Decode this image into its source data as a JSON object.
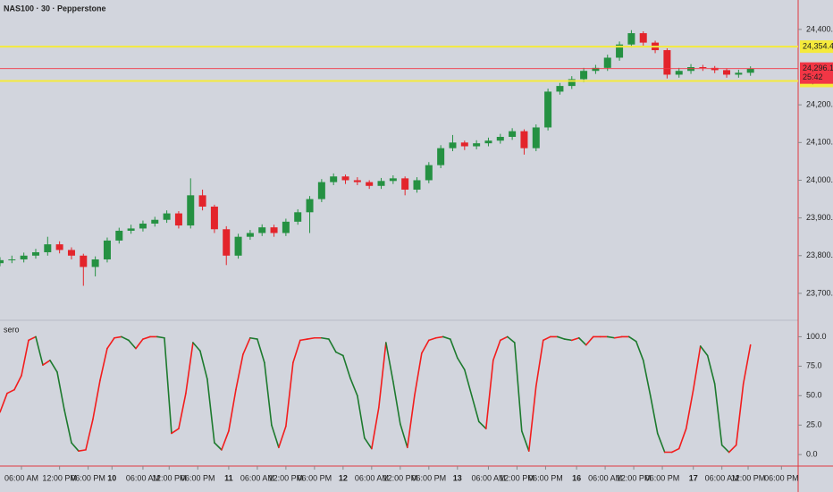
{
  "chart_data": [
    {
      "type": "candlestick",
      "title": "NAS100 · 30 · Pepperstone",
      "x": [
        0,
        5,
        10,
        15,
        20,
        25,
        30,
        35,
        40,
        45,
        50,
        55,
        60,
        65,
        70,
        75,
        80,
        85,
        90,
        95,
        100,
        105,
        110,
        115,
        120,
        125,
        130,
        135,
        140,
        145,
        150,
        155,
        160,
        165,
        170,
        175,
        180,
        185,
        190,
        195,
        200,
        205,
        210,
        215,
        220,
        225,
        230,
        235,
        240,
        245,
        250,
        255,
        260,
        265,
        270,
        275,
        280,
        285,
        290,
        295,
        300,
        305,
        310,
        315
      ],
      "open": [
        23780,
        23788,
        23790,
        23800,
        23809,
        23830,
        23815,
        23800,
        23770,
        23790,
        23840,
        23866,
        23872,
        23885,
        23895,
        23912,
        23880,
        23960,
        23930,
        23870,
        23800,
        23850,
        23860,
        23875,
        23860,
        23890,
        23915,
        23950,
        23995,
        24010,
        24000,
        23995,
        23985,
        23998,
        24005,
        23975,
        24000,
        24040,
        24085,
        24100,
        24090,
        24098,
        24105,
        24115,
        24130,
        24085,
        24140,
        24235,
        24250,
        24268,
        24290,
        24298,
        24325,
        24360,
        24390,
        24365,
        24345,
        24280,
        24290,
        24300,
        24298,
        24292,
        24280,
        24285
      ],
      "high": [
        23796,
        23800,
        23808,
        23818,
        23850,
        23838,
        23822,
        23805,
        23798,
        23848,
        23874,
        23882,
        23893,
        23903,
        23920,
        23918,
        24005,
        23975,
        23935,
        23878,
        23858,
        23868,
        23883,
        23882,
        23898,
        23923,
        23958,
        24003,
        24018,
        24015,
        24008,
        24000,
        24006,
        24013,
        24010,
        24008,
        24048,
        24093,
        24120,
        24105,
        24106,
        24113,
        24123,
        24138,
        24135,
        24148,
        24243,
        24258,
        24276,
        24298,
        24306,
        24333,
        24368,
        24398,
        24395,
        24370,
        24350,
        24298,
        24308,
        24306,
        24303,
        24297,
        24293,
        24302
      ],
      "low": [
        23772,
        23780,
        23782,
        23792,
        23800,
        23806,
        23790,
        23720,
        23745,
        23782,
        23832,
        23858,
        23864,
        23877,
        23887,
        23872,
        23872,
        23920,
        23860,
        23775,
        23792,
        23842,
        23852,
        23850,
        23852,
        23882,
        23860,
        23942,
        23987,
        23990,
        23987,
        23977,
        23977,
        23990,
        23960,
        23967,
        23992,
        24032,
        24077,
        24080,
        24082,
        24090,
        24097,
        24107,
        24068,
        24077,
        24132,
        24227,
        24242,
        24260,
        24282,
        24290,
        24317,
        24352,
        24357,
        24337,
        24270,
        24272,
        24282,
        24290,
        24284,
        24272,
        24272,
        24277
      ],
      "close": [
        23788,
        23790,
        23800,
        23809,
        23830,
        23815,
        23800,
        23770,
        23790,
        23840,
        23866,
        23872,
        23885,
        23895,
        23912,
        23880,
        23960,
        23930,
        23870,
        23800,
        23850,
        23860,
        23875,
        23860,
        23890,
        23915,
        23950,
        23995,
        24010,
        24000,
        23995,
        23985,
        23998,
        24005,
        23975,
        24000,
        24040,
        24085,
        24100,
        24090,
        24098,
        24105,
        24115,
        24130,
        24085,
        24140,
        24235,
        24250,
        24268,
        24290,
        24298,
        24325,
        24360,
        24390,
        24365,
        24345,
        24280,
        24290,
        24300,
        24298,
        24292,
        24280,
        24285,
        24296.1
      ],
      "up_color": "#259142",
      "down_color": "#e3242b",
      "xlim": [
        0,
        335
      ],
      "ylim": [
        23631,
        24478
      ],
      "yticks": [
        {
          "value": 23700,
          "label": "23,700.0"
        },
        {
          "value": 23800,
          "label": "23,800.0"
        },
        {
          "value": 23900,
          "label": "23,900.0"
        },
        {
          "value": 24000,
          "label": "24,000.0"
        },
        {
          "value": 24100,
          "label": "24,100.0"
        },
        {
          "value": 24200,
          "label": "24,200.0"
        },
        {
          "value": 24400,
          "label": "24,400.0"
        }
      ],
      "levels": [
        {
          "value": 24354.4,
          "label": "24,354.4",
          "color": "#f5ea3c"
        },
        {
          "value": 24263.3,
          "label": "24,263.3",
          "color": "#f5ea3c"
        }
      ],
      "last_price": {
        "value": 24296.1,
        "label": "24,296.1",
        "countdown": "25:42",
        "color": "#f23645"
      }
    },
    {
      "type": "line",
      "title": "sero",
      "x": [
        0,
        3,
        6,
        9,
        12,
        15,
        18,
        21,
        24,
        27,
        30,
        33,
        36,
        39,
        42,
        45,
        48,
        51,
        54,
        57,
        60,
        63,
        66,
        69,
        72,
        75,
        78,
        81,
        84,
        87,
        90,
        93,
        96,
        99,
        102,
        105,
        108,
        111,
        114,
        117,
        120,
        123,
        126,
        129,
        132,
        135,
        138,
        141,
        144,
        147,
        150,
        153,
        156,
        159,
        162,
        165,
        168,
        171,
        174,
        177,
        180,
        183,
        186,
        189,
        192,
        195,
        198,
        201,
        204,
        207,
        210,
        213,
        216,
        219,
        222,
        225,
        228,
        231,
        234,
        237,
        240,
        243,
        246,
        249,
        252,
        255,
        258,
        261,
        264,
        267,
        270,
        273,
        276,
        279,
        282,
        285,
        288,
        291,
        294,
        297,
        300,
        303,
        306,
        309,
        312,
        315
      ],
      "values": [
        36,
        52,
        55,
        67,
        97,
        100,
        76,
        80,
        70,
        38,
        10,
        3,
        4,
        30,
        63,
        90,
        99,
        100,
        97,
        90,
        98,
        100,
        100,
        99,
        18,
        22,
        52,
        95,
        88,
        64,
        10,
        4,
        20,
        55,
        85,
        99,
        98,
        78,
        25,
        6,
        24,
        78,
        97,
        98,
        99,
        99,
        98,
        87,
        84,
        65,
        50,
        14,
        5,
        40,
        95,
        62,
        26,
        6,
        50,
        86,
        97,
        99,
        100,
        98,
        82,
        72,
        50,
        28,
        22,
        80,
        97,
        100,
        95,
        20,
        3,
        58,
        97,
        100,
        100,
        98,
        97,
        99,
        93,
        100,
        100,
        100,
        99,
        100,
        100,
        96,
        80,
        50,
        18,
        2,
        2,
        5,
        22,
        55,
        92,
        84,
        60,
        8,
        2,
        8,
        60,
        93
      ],
      "up_color": "#f21d1d",
      "down_color": "#1d7a2e",
      "xlim": [
        0,
        335
      ],
      "ylim": [
        -9,
        114
      ],
      "yticks": [
        {
          "value": 0,
          "label": "0.0"
        },
        {
          "value": 25,
          "label": "25.0"
        },
        {
          "value": 50,
          "label": "50.0"
        },
        {
          "value": 75,
          "label": "75.0"
        },
        {
          "value": 100,
          "label": "100.0"
        }
      ],
      "xticks": [
        {
          "value": 9,
          "label": "06:00 AM"
        },
        {
          "value": 25,
          "label": "12:00 PM"
        },
        {
          "value": 37,
          "label": "06:00 PM"
        },
        {
          "value": 47,
          "label": "10"
        },
        {
          "value": 60,
          "label": "06:00 AM"
        },
        {
          "value": 71,
          "label": "12:00 PM"
        },
        {
          "value": 83,
          "label": "06:00 PM"
        },
        {
          "value": 96,
          "label": "11"
        },
        {
          "value": 108,
          "label": "06:00 AM"
        },
        {
          "value": 120,
          "label": "12:00 PM"
        },
        {
          "value": 132,
          "label": "06:00 PM"
        },
        {
          "value": 144,
          "label": "12"
        },
        {
          "value": 156,
          "label": "06:00 AM"
        },
        {
          "value": 168,
          "label": "12:00 PM"
        },
        {
          "value": 180,
          "label": "06:00 PM"
        },
        {
          "value": 192,
          "label": "13"
        },
        {
          "value": 205,
          "label": "06:00 AM"
        },
        {
          "value": 217,
          "label": "12:00 PM"
        },
        {
          "value": 229,
          "label": "06:00 PM"
        },
        {
          "value": 242,
          "label": "16"
        },
        {
          "value": 254,
          "label": "06:00 AM"
        },
        {
          "value": 266,
          "label": "12:00 PM"
        },
        {
          "value": 278,
          "label": "06:00 PM"
        },
        {
          "value": 291,
          "label": "17"
        },
        {
          "value": 303,
          "label": "06:00 AM"
        },
        {
          "value": 314,
          "label": "12:00 PM"
        },
        {
          "value": 328,
          "label": "06:00 PM"
        }
      ]
    }
  ]
}
